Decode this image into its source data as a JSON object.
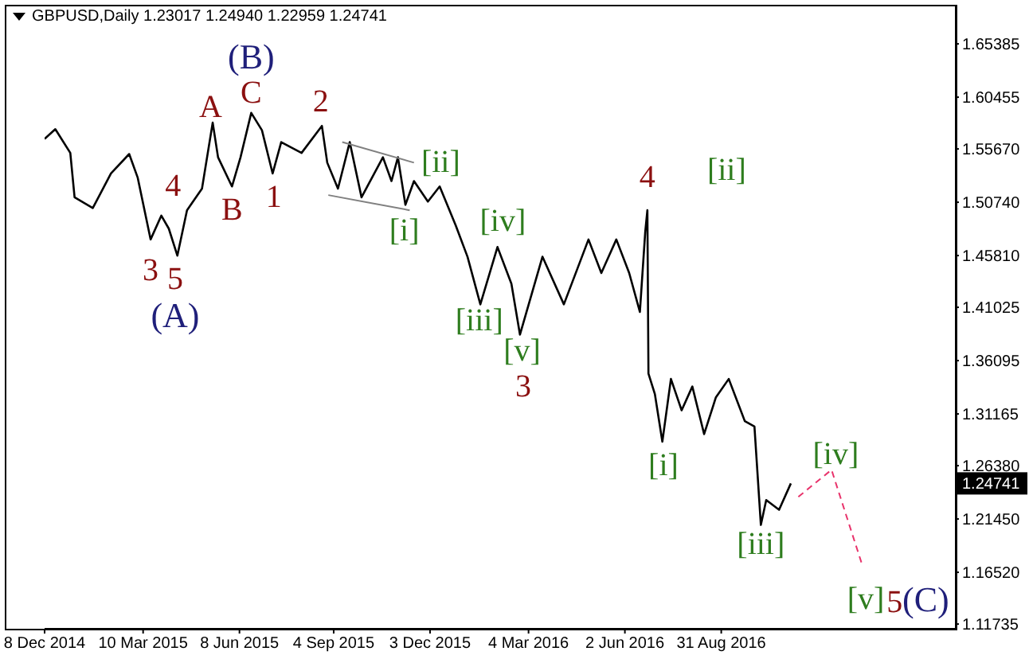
{
  "chart_data": {
    "type": "line",
    "title": "GBPUSD,Daily 1.23017 1.24940 1.22959 1.24741",
    "xlim": [
      "2014-12-08",
      "2017-04-07"
    ],
    "xticks": [
      {
        "value": "2014-12-08",
        "label": "8 Dec 2014"
      },
      {
        "value": "2015-03-10",
        "label": "10 Mar 2015"
      },
      {
        "value": "2015-06-08",
        "label": "8 Jun 2015"
      },
      {
        "value": "2015-09-04",
        "label": "4 Sep 2015"
      },
      {
        "value": "2015-12-03",
        "label": "3 Dec 2015"
      },
      {
        "value": "2016-03-04",
        "label": "4 Mar 2016"
      },
      {
        "value": "2016-06-02",
        "label": "2 Jun 2016"
      },
      {
        "value": "2016-08-31",
        "label": "31 Aug 2016"
      }
    ],
    "ylim": [
      1.113,
      1.69
    ],
    "yticks": [
      {
        "value": 1.65385,
        "label": "1.65385"
      },
      {
        "value": 1.60455,
        "label": "1.60455"
      },
      {
        "value": 1.5567,
        "label": "1.55670"
      },
      {
        "value": 1.5074,
        "label": "1.50740"
      },
      {
        "value": 1.4581,
        "label": "1.45810"
      },
      {
        "value": 1.41025,
        "label": "1.41025"
      },
      {
        "value": 1.36095,
        "label": "1.36095"
      },
      {
        "value": 1.31165,
        "label": "1.31165"
      },
      {
        "value": 1.2638,
        "label": "1.26380"
      },
      {
        "value": 1.2145,
        "label": "1.21450"
      },
      {
        "value": 1.1652,
        "label": "1.16520"
      },
      {
        "value": 1.11735,
        "label": "1.11735"
      }
    ],
    "series": [
      {
        "color": "#000000",
        "line_style": "solid",
        "x": [
          "2014-12-08",
          "2014-12-18",
          "2015-01-01",
          "2015-01-05",
          "2015-01-22",
          "2015-02-08",
          "2015-02-25",
          "2015-03-05",
          "2015-03-17",
          "2015-03-27",
          "2015-04-03",
          "2015-04-11",
          "2015-04-20",
          "2015-05-04",
          "2015-05-14",
          "2015-05-19",
          "2015-06-01",
          "2015-06-09",
          "2015-06-19",
          "2015-06-29",
          "2015-07-09",
          "2015-07-17",
          "2015-08-05",
          "2015-08-24",
          "2015-08-29",
          "2015-09-08",
          "2015-09-19",
          "2015-09-30",
          "2015-10-20",
          "2015-10-28",
          "2015-11-03",
          "2015-11-10",
          "2015-11-18",
          "2015-12-01",
          "2015-12-12",
          "2015-12-27",
          "2016-01-07",
          "2016-01-19",
          "2016-02-04",
          "2016-02-17",
          "2016-02-25",
          "2016-03-17",
          "2016-04-06",
          "2016-04-29",
          "2016-05-11",
          "2016-05-25",
          "2016-06-06",
          "2016-06-16",
          "2016-06-21",
          "2016-06-23",
          "2016-06-24",
          "2016-06-30",
          "2016-07-07",
          "2016-07-15",
          "2016-07-25",
          "2016-08-04",
          "2016-08-15",
          "2016-08-26",
          "2016-09-07",
          "2016-09-22",
          "2016-10-01",
          "2016-10-07",
          "2016-10-12",
          "2016-10-24",
          "2016-11-04"
        ],
        "values": [
          1.566,
          1.575,
          1.553,
          1.512,
          1.502,
          1.534,
          1.552,
          1.53,
          1.473,
          1.495,
          1.483,
          1.458,
          1.5,
          1.52,
          1.581,
          1.549,
          1.522,
          1.549,
          1.59,
          1.574,
          1.534,
          1.563,
          1.553,
          1.578,
          1.544,
          1.52,
          1.563,
          1.512,
          1.549,
          1.527,
          1.549,
          1.505,
          1.527,
          1.508,
          1.522,
          1.486,
          1.457,
          1.413,
          1.466,
          1.432,
          1.385,
          1.457,
          1.413,
          1.473,
          1.442,
          1.473,
          1.442,
          1.406,
          1.48,
          1.5,
          1.349,
          1.33,
          1.286,
          1.344,
          1.315,
          1.337,
          1.293,
          1.327,
          1.344,
          1.305,
          1.3,
          1.209,
          1.232,
          1.223,
          1.24741
        ]
      },
      {
        "color": "#e8336b",
        "line_style": "dashed",
        "x": [
          "2016-11-11",
          "2016-12-12",
          "2017-01-09"
        ],
        "values": [
          1.235,
          1.26,
          1.174
        ]
      },
      {
        "color": "#808080",
        "line_style": "solid",
        "x": [
          "2015-09-12",
          "2015-11-18"
        ],
        "values": [
          1.563,
          1.544
        ]
      },
      {
        "color": "#808080",
        "line_style": "solid",
        "x": [
          "2015-08-30",
          "2015-11-14"
        ],
        "values": [
          1.514,
          1.5
        ]
      }
    ],
    "annotations": [
      "(B)",
      "A",
      "C",
      "2",
      "4",
      "B",
      "1",
      "3",
      "5",
      "(A)",
      "[i]",
      "[ii]",
      "[iv]",
      "[iii]",
      "[v]",
      "3",
      "4",
      "[ii]",
      "[i]",
      "[iii]",
      "[iv]",
      "[v]",
      "5",
      "(C)",
      "1.24741"
    ]
  }
}
